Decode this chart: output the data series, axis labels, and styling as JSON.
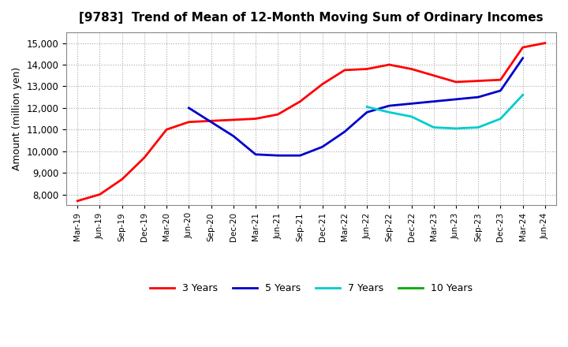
{
  "title": "[9783]  Trend of Mean of 12-Month Moving Sum of Ordinary Incomes",
  "ylabel": "Amount (million yen)",
  "background_color": "#ffffff",
  "grid_color": "#aaaaaa",
  "ylim": [
    7500,
    15500
  ],
  "yticks": [
    8000,
    9000,
    10000,
    11000,
    12000,
    13000,
    14000,
    15000
  ],
  "x_labels": [
    "Mar-19",
    "Jun-19",
    "Sep-19",
    "Dec-19",
    "Mar-20",
    "Jun-20",
    "Sep-20",
    "Dec-20",
    "Mar-21",
    "Jun-21",
    "Sep-21",
    "Dec-21",
    "Mar-22",
    "Jun-22",
    "Sep-22",
    "Dec-22",
    "Mar-23",
    "Jun-23",
    "Sep-23",
    "Dec-23",
    "Mar-24",
    "Jun-24"
  ],
  "series": {
    "3 Years": {
      "color": "#ff0000",
      "values": [
        7700,
        8000,
        8700,
        9700,
        11000,
        11350,
        11400,
        11450,
        11500,
        11700,
        12300,
        13100,
        13750,
        13800,
        14000,
        13800,
        13500,
        13200,
        13250,
        13300,
        14800,
        15000
      ]
    },
    "5 Years": {
      "color": "#0000cc",
      "values": [
        null,
        null,
        null,
        null,
        null,
        12000,
        11350,
        10700,
        9850,
        9800,
        9800,
        10200,
        10900,
        11800,
        12100,
        12200,
        12300,
        12400,
        12500,
        12800,
        14300,
        null
      ]
    },
    "7 Years": {
      "color": "#00cccc",
      "values": [
        null,
        null,
        null,
        null,
        null,
        null,
        null,
        null,
        null,
        null,
        null,
        null,
        null,
        12050,
        11800,
        11600,
        11100,
        11050,
        11100,
        11500,
        12600,
        null
      ]
    },
    "10 Years": {
      "color": "#00aa00",
      "values": [
        null,
        null,
        null,
        null,
        null,
        null,
        null,
        null,
        null,
        null,
        null,
        null,
        null,
        null,
        null,
        null,
        null,
        null,
        null,
        null,
        null,
        null
      ]
    }
  }
}
